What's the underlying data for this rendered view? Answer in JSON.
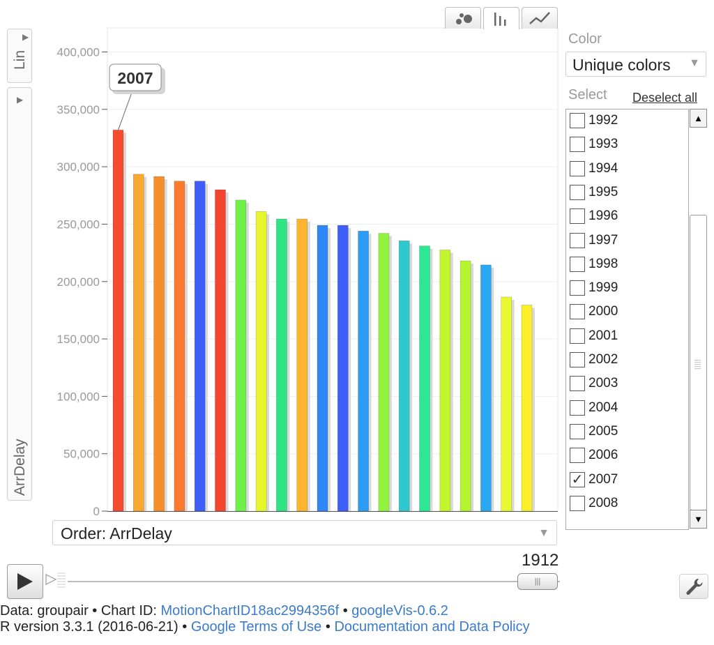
{
  "views": {
    "bubble_icon": "bubble-chart-icon",
    "bar_icon": "bar-chart-icon",
    "line_icon": "line-chart-icon",
    "active": "bar"
  },
  "axis": {
    "scale_label": "Lin",
    "y_variable": "ArrDelay"
  },
  "color_panel": {
    "label": "Color",
    "value": "Unique colors"
  },
  "select_panel": {
    "label": "Select",
    "deselect_all": "Deselect all",
    "items": [
      {
        "label": "1992",
        "checked": false
      },
      {
        "label": "1993",
        "checked": false
      },
      {
        "label": "1994",
        "checked": false
      },
      {
        "label": "1995",
        "checked": false
      },
      {
        "label": "1996",
        "checked": false
      },
      {
        "label": "1997",
        "checked": false
      },
      {
        "label": "1998",
        "checked": false
      },
      {
        "label": "1999",
        "checked": false
      },
      {
        "label": "2000",
        "checked": false
      },
      {
        "label": "2001",
        "checked": false
      },
      {
        "label": "2002",
        "checked": false
      },
      {
        "label": "2003",
        "checked": false
      },
      {
        "label": "2004",
        "checked": false
      },
      {
        "label": "2005",
        "checked": false
      },
      {
        "label": "2006",
        "checked": false
      },
      {
        "label": "2007",
        "checked": true
      },
      {
        "label": "2008",
        "checked": false
      }
    ]
  },
  "order": {
    "label": "Order: ArrDelay"
  },
  "playback": {
    "current_value": "1912",
    "play_icon": "play-icon",
    "speed_icon": "speed-icon",
    "settings_icon": "wrench-icon"
  },
  "footer": {
    "line1_prefix": "Data: groupair • Chart ID: ",
    "chart_id_link": "MotionChartID18ac2994356f",
    "line1_sep": " • ",
    "package_link": "googleVis-0.6.2",
    "line2_prefix": "R version 3.3.1 (2016-06-21) • ",
    "terms_link": "Google Terms of Use",
    "line2_sep": " • ",
    "policy_link": "Documentation and Data Policy"
  },
  "chart_data": {
    "type": "bar",
    "ylim": [
      0,
      400000
    ],
    "yticks": [
      0,
      50000,
      100000,
      150000,
      200000,
      250000,
      300000,
      350000,
      400000
    ],
    "ytick_labels": [
      "0",
      "50,000",
      "100,000",
      "150,000",
      "200,000",
      "250,000",
      "300,000",
      "350,000",
      "400,000"
    ],
    "grid": true,
    "highlight_label": "2007",
    "values": [
      332000,
      293500,
      291500,
      287500,
      287500,
      280000,
      271000,
      261000,
      254500,
      254500,
      249000,
      249000,
      244000,
      242000,
      235500,
      231000,
      227500,
      218000,
      214500,
      186500,
      179500
    ],
    "colors": [
      "#f44c2e",
      "#f9a830",
      "#f78e2c",
      "#fa7a2e",
      "#3d5ef8",
      "#f34630",
      "#6ef24a",
      "#e6f62a",
      "#2fe484",
      "#fdb42f",
      "#3086f7",
      "#3d5ef8",
      "#2c9cf4",
      "#92f33e",
      "#2fc8cf",
      "#2ce894",
      "#c1f52c",
      "#b4f52f",
      "#29a7f2",
      "#eaf830",
      "#fbef2a"
    ],
    "highlighted_index": 0
  }
}
